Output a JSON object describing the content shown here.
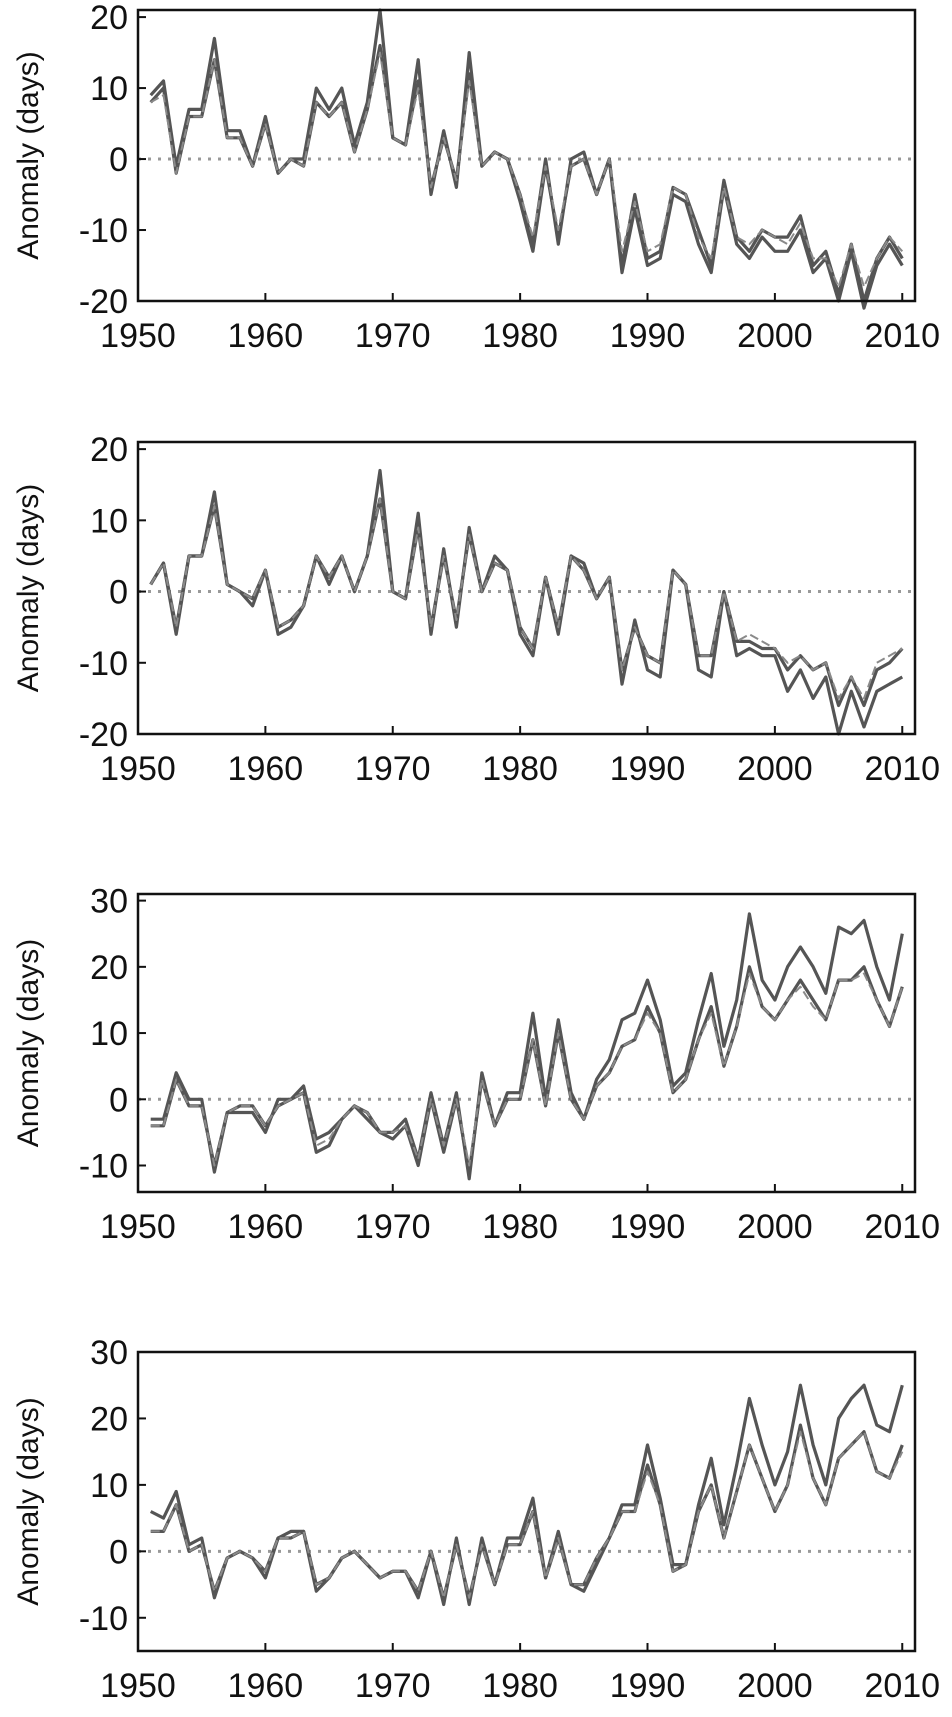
{
  "colors": {
    "series_dark": "#555555",
    "series_light": "#8a8a8a",
    "zero_line": "#999999",
    "frame": "#111111"
  },
  "chart_data": [
    {
      "type": "line",
      "ylabel": "Anomaly (days)",
      "xlim": [
        1950,
        2011
      ],
      "ylim": [
        -20,
        21
      ],
      "x_ticks": [
        1950,
        1960,
        1970,
        1980,
        1990,
        2000,
        2010
      ],
      "y_ticks": [
        -20,
        -10,
        0,
        10,
        20
      ],
      "zero_line": true,
      "x": [
        1951,
        1952,
        1953,
        1954,
        1955,
        1956,
        1957,
        1958,
        1959,
        1960,
        1961,
        1962,
        1963,
        1964,
        1965,
        1966,
        1967,
        1968,
        1969,
        1970,
        1971,
        1972,
        1973,
        1974,
        1975,
        1976,
        1977,
        1978,
        1979,
        1980,
        1981,
        1982,
        1983,
        1984,
        1985,
        1986,
        1987,
        1988,
        1989,
        1990,
        1991,
        1992,
        1993,
        1994,
        1995,
        1996,
        1997,
        1998,
        1999,
        2000,
        2001,
        2002,
        2003,
        2004,
        2005,
        2006,
        2007,
        2008,
        2009,
        2010
      ],
      "series": [
        {
          "values": [
            9,
            11,
            -1,
            7,
            7,
            17,
            4,
            4,
            -1,
            6,
            -2,
            0,
            0,
            10,
            7,
            10,
            2,
            8,
            21,
            3,
            2,
            14,
            -5,
            4,
            -4,
            15,
            -1,
            1,
            0,
            -5,
            -12,
            0,
            -12,
            0,
            1,
            -5,
            0,
            -15,
            -5,
            -14,
            -13,
            -4,
            -5,
            -10,
            -15,
            -3,
            -11,
            -13,
            -10,
            -11,
            -11,
            -8,
            -15,
            -13,
            -19,
            -12,
            -20,
            -14,
            -11,
            -14
          ]
        },
        {
          "values": [
            8,
            10,
            -2,
            6,
            6,
            14,
            3,
            3,
            -1,
            5,
            -2,
            0,
            -1,
            8,
            6,
            8,
            1,
            7,
            16,
            3,
            2,
            11,
            -4,
            3,
            -3,
            12,
            -1,
            1,
            0,
            -6,
            -13,
            -1,
            -11,
            -1,
            0,
            -5,
            0,
            -16,
            -7,
            -15,
            -14,
            -5,
            -6,
            -12,
            -16,
            -4,
            -12,
            -14,
            -11,
            -13,
            -13,
            -10,
            -16,
            -14,
            -20,
            -13,
            -21,
            -15,
            -12,
            -15
          ]
        },
        {
          "dashed": true,
          "values": [
            8,
            9,
            -2,
            6,
            6,
            14,
            3,
            3,
            -1,
            5,
            -2,
            0,
            -1,
            8,
            6,
            8,
            1,
            7,
            15,
            3,
            2,
            10,
            -4,
            3,
            -3,
            11,
            -1,
            1,
            0,
            -5,
            -11,
            -1,
            -10,
            -1,
            0,
            -5,
            0,
            -13,
            -6,
            -13,
            -12,
            -4,
            -5,
            -11,
            -14,
            -4,
            -11,
            -12,
            -10,
            -11,
            -12,
            -9,
            -14,
            -14,
            -18,
            -12,
            -18,
            -14,
            -11,
            -13
          ]
        }
      ]
    },
    {
      "type": "line",
      "ylabel": "Anomaly (days)",
      "xlim": [
        1950,
        2011
      ],
      "ylim": [
        -20,
        21
      ],
      "x_ticks": [
        1950,
        1960,
        1970,
        1980,
        1990,
        2000,
        2010
      ],
      "y_ticks": [
        -20,
        -10,
        0,
        10,
        20
      ],
      "zero_line": true,
      "x": [
        1951,
        1952,
        1953,
        1954,
        1955,
        1956,
        1957,
        1958,
        1959,
        1960,
        1961,
        1962,
        1963,
        1964,
        1965,
        1966,
        1967,
        1968,
        1969,
        1970,
        1971,
        1972,
        1973,
        1974,
        1975,
        1976,
        1977,
        1978,
        1979,
        1980,
        1981,
        1982,
        1983,
        1984,
        1985,
        1986,
        1987,
        1988,
        1989,
        1990,
        1991,
        1992,
        1993,
        1994,
        1995,
        1996,
        1997,
        1998,
        1999,
        2000,
        2001,
        2002,
        2003,
        2004,
        2005,
        2006,
        2007,
        2008,
        2009,
        2010
      ],
      "series": [
        {
          "values": [
            1,
            4,
            -6,
            5,
            5,
            14,
            1,
            0,
            -2,
            3,
            -6,
            -5,
            -2,
            5,
            1,
            5,
            0,
            5,
            17,
            0,
            -1,
            11,
            -6,
            6,
            -5,
            9,
            0,
            5,
            3,
            -6,
            -9,
            2,
            -6,
            5,
            4,
            -1,
            2,
            -13,
            -4,
            -11,
            -12,
            3,
            1,
            -11,
            -12,
            0,
            -9,
            -8,
            -9,
            -9,
            -14,
            -11,
            -15,
            -12,
            -20,
            -14,
            -19,
            -14,
            -13,
            -12
          ]
        },
        {
          "values": [
            1,
            4,
            -5,
            5,
            5,
            12,
            1,
            0,
            -1,
            3,
            -5,
            -4,
            -2,
            5,
            2,
            5,
            0,
            5,
            13,
            0,
            -1,
            9,
            -5,
            5,
            -4,
            8,
            0,
            4,
            3,
            -5,
            -8,
            2,
            -5,
            5,
            3,
            -1,
            2,
            -11,
            -5,
            -9,
            -10,
            3,
            1,
            -9,
            -9,
            0,
            -7,
            -7,
            -8,
            -8,
            -11,
            -9,
            -11,
            -10,
            -16,
            -12,
            -16,
            -11,
            -10,
            -8
          ]
        },
        {
          "dashed": true,
          "values": [
            1,
            4,
            -5,
            5,
            5,
            12,
            1,
            0,
            -1,
            3,
            -5,
            -4,
            -2,
            5,
            2,
            5,
            0,
            5,
            13,
            0,
            -1,
            9,
            -5,
            5,
            -4,
            8,
            0,
            4,
            3,
            -5,
            -8,
            2,
            -5,
            5,
            3,
            -1,
            2,
            -11,
            -5,
            -9,
            -10,
            3,
            1,
            -9,
            -9,
            0,
            -7,
            -6,
            -7,
            -8,
            -10,
            -9,
            -11,
            -10,
            -15,
            -12,
            -15,
            -10,
            -9,
            -8
          ]
        }
      ]
    },
    {
      "type": "line",
      "ylabel": "Anomaly (days)",
      "xlim": [
        1950,
        2011
      ],
      "ylim": [
        -14,
        31
      ],
      "x_ticks": [
        1950,
        1960,
        1970,
        1980,
        1990,
        2000,
        2010
      ],
      "y_ticks": [
        -10,
        0,
        10,
        20,
        30
      ],
      "zero_line": true,
      "x": [
        1951,
        1952,
        1953,
        1954,
        1955,
        1956,
        1957,
        1958,
        1959,
        1960,
        1961,
        1962,
        1963,
        1964,
        1965,
        1966,
        1967,
        1968,
        1969,
        1970,
        1971,
        1972,
        1973,
        1974,
        1975,
        1976,
        1977,
        1978,
        1979,
        1980,
        1981,
        1982,
        1983,
        1984,
        1985,
        1986,
        1987,
        1988,
        1989,
        1990,
        1991,
        1992,
        1993,
        1994,
        1995,
        1996,
        1997,
        1998,
        1999,
        2000,
        2001,
        2002,
        2003,
        2004,
        2005,
        2006,
        2007,
        2008,
        2009,
        2010
      ],
      "series": [
        {
          "values": [
            -3,
            -3,
            4,
            0,
            0,
            -11,
            -2,
            -2,
            -2,
            -5,
            0,
            0,
            2,
            -6,
            -5,
            -3,
            -1,
            -3,
            -5,
            -5,
            -3,
            -9,
            1,
            -7,
            1,
            -12,
            4,
            -4,
            1,
            1,
            13,
            0,
            12,
            1,
            -3,
            3,
            6,
            12,
            13,
            18,
            12,
            2,
            4,
            12,
            19,
            8,
            15,
            28,
            18,
            15,
            20,
            23,
            20,
            16,
            26,
            25,
            27,
            20,
            15,
            25
          ]
        },
        {
          "values": [
            -4,
            -4,
            3,
            -1,
            -1,
            -10,
            -2,
            -1,
            -1,
            -4,
            -1,
            0,
            1,
            -8,
            -7,
            -3,
            -1,
            -2,
            -5,
            -6,
            -4,
            -10,
            0,
            -8,
            0,
            -11,
            3,
            -4,
            0,
            0,
            9,
            -1,
            10,
            0,
            -3,
            2,
            4,
            8,
            9,
            14,
            10,
            1,
            3,
            9,
            14,
            5,
            11,
            20,
            14,
            12,
            15,
            18,
            15,
            12,
            18,
            18,
            20,
            15,
            11,
            17
          ]
        },
        {
          "dashed": true,
          "values": [
            -4,
            -4,
            3,
            -1,
            -1,
            -10,
            -2,
            -1,
            -1,
            -4,
            -1,
            0,
            1,
            -7,
            -6,
            -3,
            -1,
            -2,
            -5,
            -5,
            -4,
            -9,
            0,
            -7,
            0,
            -10,
            3,
            -4,
            0,
            0,
            9,
            -1,
            10,
            0,
            -3,
            2,
            4,
            8,
            9,
            13,
            10,
            1,
            3,
            9,
            13,
            5,
            11,
            19,
            14,
            12,
            15,
            17,
            14,
            12,
            18,
            18,
            19,
            15,
            11,
            17
          ]
        }
      ]
    },
    {
      "type": "line",
      "ylabel": "Anomaly (days)",
      "xlim": [
        1950,
        2011
      ],
      "ylim": [
        -15,
        30
      ],
      "x_ticks": [
        1950,
        1960,
        1970,
        1980,
        1990,
        2000,
        2010
      ],
      "y_ticks": [
        -10,
        0,
        10,
        20,
        30
      ],
      "zero_line": true,
      "x": [
        1951,
        1952,
        1953,
        1954,
        1955,
        1956,
        1957,
        1958,
        1959,
        1960,
        1961,
        1962,
        1963,
        1964,
        1965,
        1966,
        1967,
        1968,
        1969,
        1970,
        1971,
        1972,
        1973,
        1974,
        1975,
        1976,
        1977,
        1978,
        1979,
        1980,
        1981,
        1982,
        1983,
        1984,
        1985,
        1986,
        1987,
        1988,
        1989,
        1990,
        1991,
        1992,
        1993,
        1994,
        1995,
        1996,
        1997,
        1998,
        1999,
        2000,
        2001,
        2002,
        2003,
        2004,
        2005,
        2006,
        2007,
        2008,
        2009,
        2010
      ],
      "series": [
        {
          "values": [
            6,
            5,
            9,
            1,
            2,
            -7,
            -1,
            0,
            -1,
            -4,
            2,
            3,
            3,
            -6,
            -4,
            -1,
            0,
            -2,
            -4,
            -3,
            -3,
            -7,
            0,
            -8,
            2,
            -8,
            2,
            -5,
            2,
            2,
            8,
            -4,
            3,
            -5,
            -6,
            -2,
            2,
            7,
            7,
            16,
            8,
            -2,
            -2,
            7,
            14,
            4,
            13,
            23,
            16,
            10,
            15,
            25,
            16,
            10,
            20,
            23,
            25,
            19,
            18,
            25
          ]
        },
        {
          "values": [
            3,
            3,
            7,
            0,
            1,
            -6,
            -1,
            0,
            -1,
            -3,
            2,
            2,
            3,
            -5,
            -4,
            -1,
            0,
            -2,
            -4,
            -3,
            -3,
            -6,
            0,
            -7,
            1,
            -7,
            1,
            -5,
            1,
            1,
            6,
            -4,
            2,
            -5,
            -5,
            -1,
            2,
            6,
            6,
            13,
            7,
            -3,
            -2,
            6,
            10,
            2,
            9,
            16,
            11,
            6,
            10,
            19,
            11,
            7,
            14,
            16,
            18,
            12,
            11,
            16
          ]
        },
        {
          "dashed": true,
          "values": [
            3,
            3,
            7,
            0,
            1,
            -6,
            -1,
            0,
            -1,
            -3,
            2,
            2,
            3,
            -5,
            -4,
            -1,
            0,
            -2,
            -4,
            -3,
            -3,
            -6,
            0,
            -7,
            1,
            -7,
            1,
            -5,
            1,
            1,
            6,
            -4,
            2,
            -5,
            -5,
            -1,
            2,
            6,
            6,
            12,
            7,
            -3,
            -2,
            6,
            10,
            2,
            9,
            16,
            11,
            6,
            10,
            18,
            11,
            7,
            14,
            16,
            18,
            12,
            11,
            15
          ]
        }
      ]
    }
  ]
}
